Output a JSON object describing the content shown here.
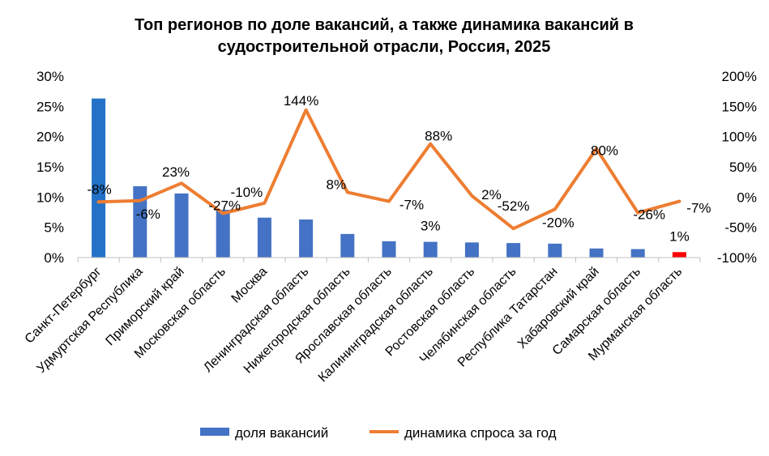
{
  "chart_data": {
    "type": "bar",
    "title": "Топ регионов по доле вакансий, а также динамика вакансий в судостроительной отрасли, Россия, 2025",
    "title_lines": [
      "Топ регионов по доле вакансий, а также динамика вакансий в",
      "судостроительной отрасли, Россия, 2025"
    ],
    "categories": [
      "Санкт-Петербург",
      "Удмуртская Республика",
      "Приморский край",
      "Московская область",
      "Москва",
      "Ленинградская область",
      "Нижегородская область",
      "Ярославская область",
      "Калининградская  область",
      "Ростовская область",
      "Челябинская область",
      "Республика Татарстан",
      "Хабаровский край",
      "Самарская область",
      "Мурманская область"
    ],
    "series": [
      {
        "name": "доля вакансий",
        "type": "bar",
        "axis": "left",
        "unit": "%",
        "values": [
          26.3,
          11.8,
          10.6,
          7.9,
          6.6,
          6.3,
          3.9,
          2.7,
          2.6,
          2.5,
          2.4,
          2.3,
          1.5,
          1.4,
          0.9
        ],
        "colors": [
          "#2472C8",
          "#4472C4",
          "#4472C4",
          "#4472C4",
          "#4472C4",
          "#4472C4",
          "#4472C4",
          "#4472C4",
          "#4472C4",
          "#4472C4",
          "#4472C4",
          "#4472C4",
          "#4472C4",
          "#4472C4",
          "#FF0000"
        ],
        "data_labels": [
          "",
          "",
          "",
          "",
          "",
          "",
          "",
          "",
          "3%",
          "",
          "",
          "",
          "",
          "",
          "1%"
        ]
      },
      {
        "name": "динамика спроса за год",
        "type": "line",
        "axis": "right",
        "unit": "%",
        "values": [
          -8,
          -6,
          23,
          -27,
          -10,
          144,
          8,
          -7,
          88,
          2,
          -52,
          -20,
          80,
          -26,
          -7
        ],
        "color": "#ED7D31",
        "data_labels": [
          "-8%",
          "-6%",
          "23%",
          "-27%",
          "-10%",
          "144%",
          "8%",
          "-7%",
          "88%",
          "2%",
          "-52%",
          "-20%",
          "80%",
          "-26%",
          "-7%"
        ]
      }
    ],
    "y_left": {
      "min": 0,
      "max": 30,
      "step": 5,
      "ticks": [
        "0%",
        "5%",
        "10%",
        "15%",
        "20%",
        "25%",
        "30%"
      ]
    },
    "y_right": {
      "min": -100,
      "max": 200,
      "step": 50,
      "ticks": [
        "-100%",
        "-50%",
        "0%",
        "50%",
        "100%",
        "150%",
        "200%"
      ]
    },
    "grid": false,
    "legend_position": "bottom",
    "legend": [
      {
        "label": "доля вакансий",
        "kind": "bar",
        "color": "#4472C4"
      },
      {
        "label": "динамика спроса за год",
        "kind": "line",
        "color": "#ED7D31"
      }
    ]
  }
}
